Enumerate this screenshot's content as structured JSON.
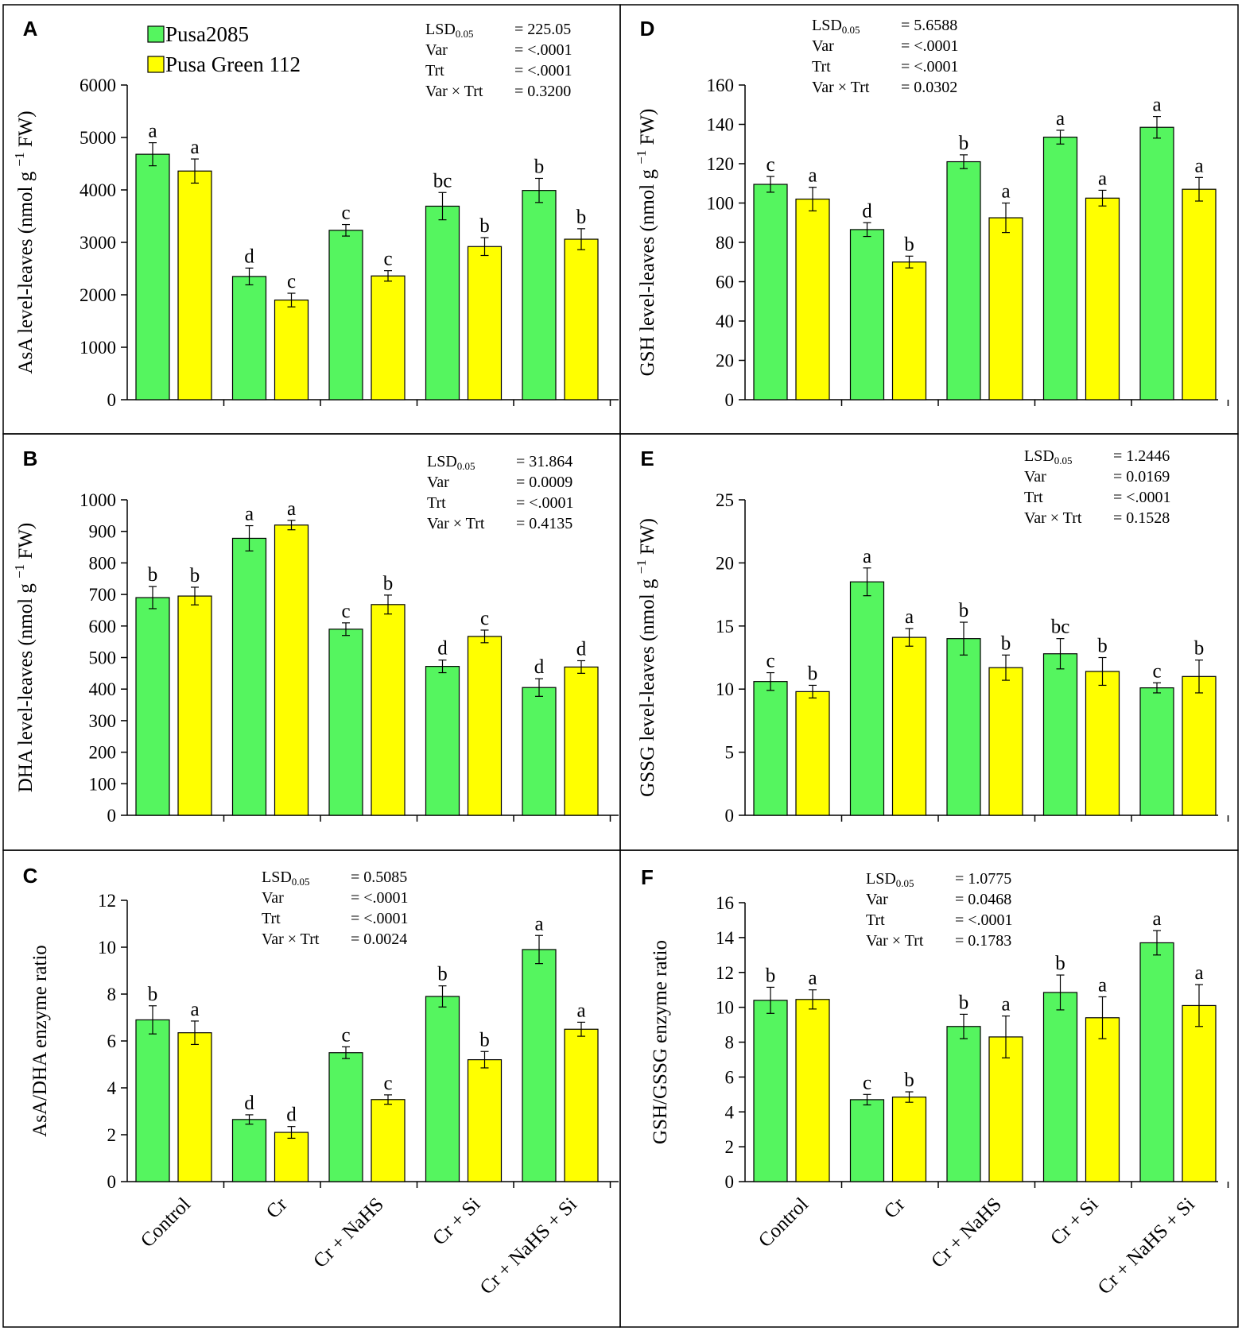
{
  "colors": {
    "series1": "#55f55f",
    "series2": "#ffff00",
    "frame": "#000000"
  },
  "legend": [
    {
      "label": "Pusa2085",
      "color": "#55f55f"
    },
    {
      "label": "Pusa Green 112",
      "color": "#ffff00"
    }
  ],
  "chart_data": [
    {
      "panel": "A",
      "type": "bar",
      "ylabel": "AsA level-leaves (nmol g⁻¹ FW)",
      "ylim": [
        0,
        6000
      ],
      "ytick_step": 1000,
      "categories": [
        "Control",
        "Cr",
        "Cr + NaHS",
        "Cr + Si",
        "Cr + NaHS + Si"
      ],
      "series": [
        {
          "name": "Pusa2085",
          "values": [
            4680,
            2350,
            3230,
            3690,
            3990
          ],
          "errors": [
            220,
            160,
            110,
            260,
            230
          ],
          "letters": [
            "a",
            "d",
            "c",
            "bc",
            "b"
          ]
        },
        {
          "name": "Pusa Green 112",
          "values": [
            4360,
            1900,
            2360,
            2920,
            3060
          ],
          "errors": [
            230,
            130,
            100,
            170,
            200
          ],
          "letters": [
            "a",
            "c",
            "c",
            "b",
            "b"
          ]
        }
      ],
      "stats": [
        {
          "label": "LSD",
          "sub": "0.05",
          "value": "= 225.05"
        },
        {
          "label": "Var",
          "sub": "",
          "value": "= <.0001"
        },
        {
          "label": "Trt",
          "sub": "",
          "value": "= <.0001"
        },
        {
          "label": "Var × Trt",
          "sub": "",
          "value": "= 0.3200"
        }
      ]
    },
    {
      "panel": "B",
      "type": "bar",
      "ylabel": "DHA level-leaves (nmol g⁻¹ FW)",
      "ylim": [
        0,
        1000
      ],
      "ytick_step": 100,
      "categories": [
        "Control",
        "Cr",
        "Cr + NaHS",
        "Cr + Si",
        "Cr + NaHS + Si"
      ],
      "series": [
        {
          "name": "Pusa2085",
          "values": [
            690,
            878,
            590,
            472,
            405
          ],
          "errors": [
            35,
            40,
            20,
            20,
            28
          ],
          "letters": [
            "b",
            "a",
            "c",
            "d",
            "d"
          ]
        },
        {
          "name": "Pusa Green 112",
          "values": [
            695,
            920,
            668,
            567,
            470
          ],
          "errors": [
            28,
            15,
            30,
            20,
            20
          ],
          "letters": [
            "b",
            "a",
            "b",
            "c",
            "d"
          ]
        }
      ],
      "stats": [
        {
          "label": "LSD",
          "sub": "0.05",
          "value": "= 31.864"
        },
        {
          "label": "Var",
          "sub": "",
          "value": "= 0.0009"
        },
        {
          "label": "Trt",
          "sub": "",
          "value": "= <.0001"
        },
        {
          "label": "Var × Trt",
          "sub": "",
          "value": "= 0.4135"
        }
      ]
    },
    {
      "panel": "C",
      "type": "bar",
      "ylabel": "AsA/DHA enzyme ratio",
      "ylim": [
        0,
        12
      ],
      "ytick_step": 2,
      "categories": [
        "Control",
        "Cr",
        "Cr + NaHS",
        "Cr + Si",
        "Cr + NaHS + Si"
      ],
      "series": [
        {
          "name": "Pusa2085",
          "values": [
            6.9,
            2.65,
            5.5,
            7.9,
            9.9
          ],
          "errors": [
            0.6,
            0.2,
            0.25,
            0.45,
            0.6
          ],
          "letters": [
            "b",
            "d",
            "c",
            "b",
            "a"
          ]
        },
        {
          "name": "Pusa Green 112",
          "values": [
            6.35,
            2.1,
            3.5,
            5.2,
            6.5
          ],
          "errors": [
            0.5,
            0.25,
            0.2,
            0.35,
            0.3
          ],
          "letters": [
            "a",
            "d",
            "c",
            "b",
            "a"
          ]
        }
      ],
      "stats": [
        {
          "label": "LSD",
          "sub": "0.05",
          "value": "= 0.5085"
        },
        {
          "label": "Var",
          "sub": "",
          "value": "= <.0001"
        },
        {
          "label": "Trt",
          "sub": "",
          "value": "= <.0001"
        },
        {
          "label": "Var × Trt",
          "sub": "",
          "value": "= 0.0024"
        }
      ]
    },
    {
      "panel": "D",
      "type": "bar",
      "ylabel": "GSH level-leaves (nmol g⁻¹ FW)",
      "ylim": [
        0,
        160
      ],
      "ytick_step": 20,
      "categories": [
        "Control",
        "Cr",
        "Cr + NaHS",
        "Cr + Si",
        "Cr + NaHS + Si"
      ],
      "series": [
        {
          "name": "Pusa2085",
          "values": [
            109.5,
            86.5,
            121,
            133.5,
            138.5
          ],
          "errors": [
            4,
            3.5,
            3.5,
            3.5,
            5.5
          ],
          "letters": [
            "c",
            "d",
            "b",
            "a",
            "a"
          ]
        },
        {
          "name": "Pusa Green 112",
          "values": [
            102,
            70,
            92.5,
            102.5,
            107
          ],
          "errors": [
            6,
            3,
            7.5,
            4,
            6
          ],
          "letters": [
            "a",
            "b",
            "a",
            "a",
            "a"
          ]
        }
      ],
      "stats": [
        {
          "label": "LSD",
          "sub": "0.05",
          "value": "= 5.6588"
        },
        {
          "label": "Var",
          "sub": "",
          "value": "= <.0001"
        },
        {
          "label": "Trt",
          "sub": "",
          "value": "= <.0001"
        },
        {
          "label": "Var × Trt",
          "sub": "",
          "value": "= 0.0302"
        }
      ]
    },
    {
      "panel": "E",
      "type": "bar",
      "ylabel": "GSSG level-leaves (nmol g⁻¹ FW)",
      "ylim": [
        0,
        25
      ],
      "ytick_step": 5,
      "categories": [
        "Control",
        "Cr",
        "Cr + NaHS",
        "Cr + Si",
        "Cr + NaHS + Si"
      ],
      "series": [
        {
          "name": "Pusa2085",
          "values": [
            10.6,
            18.5,
            14.0,
            12.8,
            10.1
          ],
          "errors": [
            0.7,
            1.1,
            1.3,
            1.2,
            0.4
          ],
          "letters": [
            "c",
            "a",
            "b",
            "bc",
            "c"
          ]
        },
        {
          "name": "Pusa Green 112",
          "values": [
            9.8,
            14.1,
            11.7,
            11.4,
            11.0
          ],
          "errors": [
            0.5,
            0.7,
            1.0,
            1.1,
            1.3
          ],
          "letters": [
            "b",
            "a",
            "b",
            "b",
            "b"
          ]
        }
      ],
      "stats": [
        {
          "label": "LSD",
          "sub": "0.05",
          "value": "= 1.2446"
        },
        {
          "label": "Var",
          "sub": "",
          "value": "= 0.0169"
        },
        {
          "label": "Trt",
          "sub": "",
          "value": "= <.0001"
        },
        {
          "label": "Var × Trt",
          "sub": "",
          "value": "= 0.1528"
        }
      ]
    },
    {
      "panel": "F",
      "type": "bar",
      "ylabel": "GSH/GSSG enzyme ratio",
      "ylim": [
        0,
        16
      ],
      "ytick_step": 2,
      "categories": [
        "Control",
        "Cr",
        "Cr + NaHS",
        "Cr + Si",
        "Cr + NaHS + Si"
      ],
      "series": [
        {
          "name": "Pusa2085",
          "values": [
            10.4,
            4.7,
            8.9,
            10.85,
            13.7
          ],
          "errors": [
            0.75,
            0.3,
            0.7,
            1.0,
            0.7
          ],
          "letters": [
            "b",
            "c",
            "b",
            "b",
            "a"
          ]
        },
        {
          "name": "Pusa Green 112",
          "values": [
            10.45,
            4.85,
            8.3,
            9.4,
            10.1
          ],
          "errors": [
            0.55,
            0.3,
            1.2,
            1.2,
            1.2
          ],
          "letters": [
            "a",
            "b",
            "a",
            "a",
            "a"
          ]
        }
      ],
      "stats": [
        {
          "label": "LSD",
          "sub": "0.05",
          "value": "= 1.0775"
        },
        {
          "label": "Var",
          "sub": "",
          "value": "= 0.0468"
        },
        {
          "label": "Trt",
          "sub": "",
          "value": "= <.0001"
        },
        {
          "label": "Var × Trt",
          "sub": "",
          "value": "= 0.1783"
        }
      ]
    }
  ]
}
